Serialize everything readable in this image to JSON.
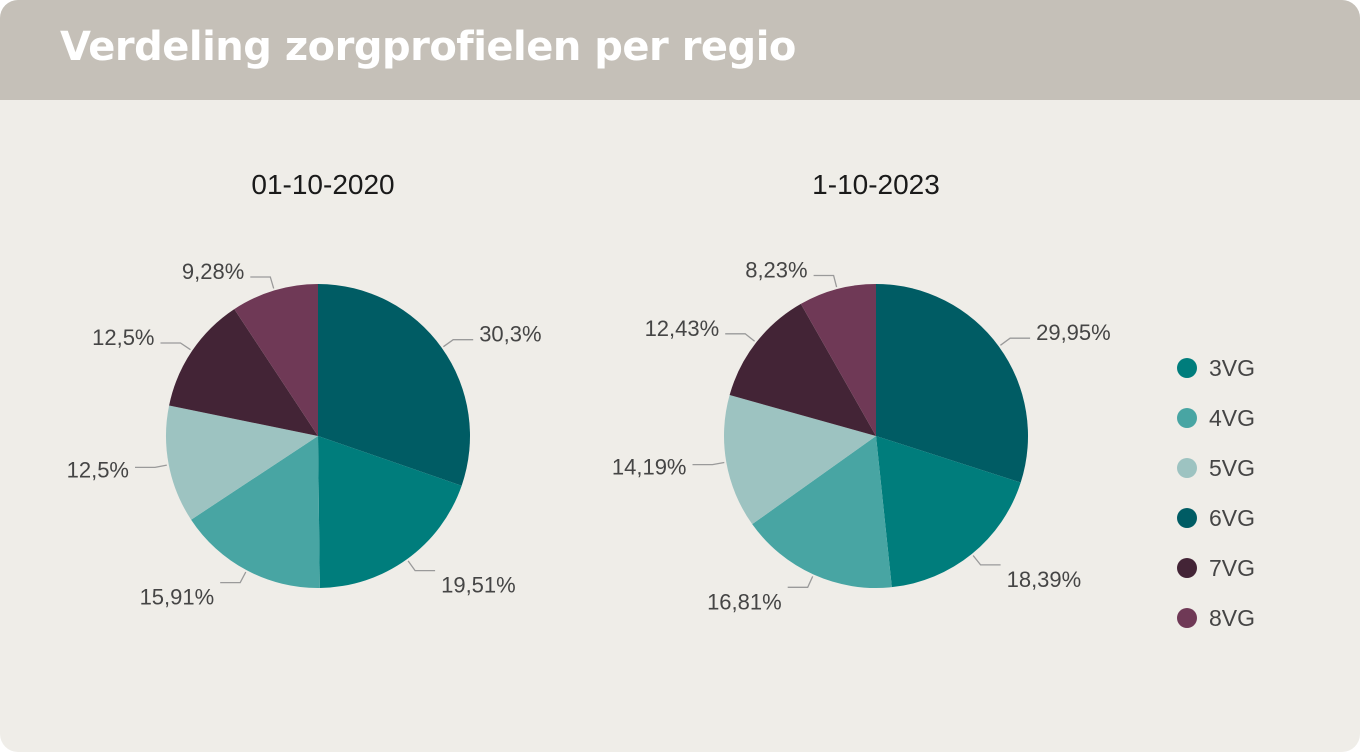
{
  "header": {
    "title": "Verdeling zorgprofielen per regio"
  },
  "legend": {
    "placement": "right",
    "items": [
      {
        "label": "3VG",
        "color": "#007d7c"
      },
      {
        "label": "4VG",
        "color": "#48a5a3"
      },
      {
        "label": "5VG",
        "color": "#9dc3c1"
      },
      {
        "label": "6VG",
        "color": "#005c64"
      },
      {
        "label": "7VG",
        "color": "#432436"
      },
      {
        "label": "8VG",
        "color": "#6f3956"
      }
    ]
  },
  "chart_data": [
    {
      "type": "pie",
      "title": "01-10-2020",
      "categories": [
        "6VG",
        "3VG",
        "4VG",
        "5VG",
        "7VG",
        "8VG"
      ],
      "values": [
        30.3,
        19.51,
        15.91,
        12.5,
        12.5,
        9.28
      ],
      "labels": [
        "30,3%",
        "19,51%",
        "15,91%",
        "12,5%",
        "12,5%",
        "9,28%"
      ]
    },
    {
      "type": "pie",
      "title": "1-10-2023",
      "categories": [
        "6VG",
        "3VG",
        "4VG",
        "5VG",
        "7VG",
        "8VG"
      ],
      "values": [
        29.95,
        18.39,
        16.81,
        14.19,
        12.43,
        8.23
      ],
      "labels": [
        "29,95%",
        "18,39%",
        "16,81%",
        "14,19%",
        "12,43%",
        "8,23%"
      ]
    }
  ]
}
